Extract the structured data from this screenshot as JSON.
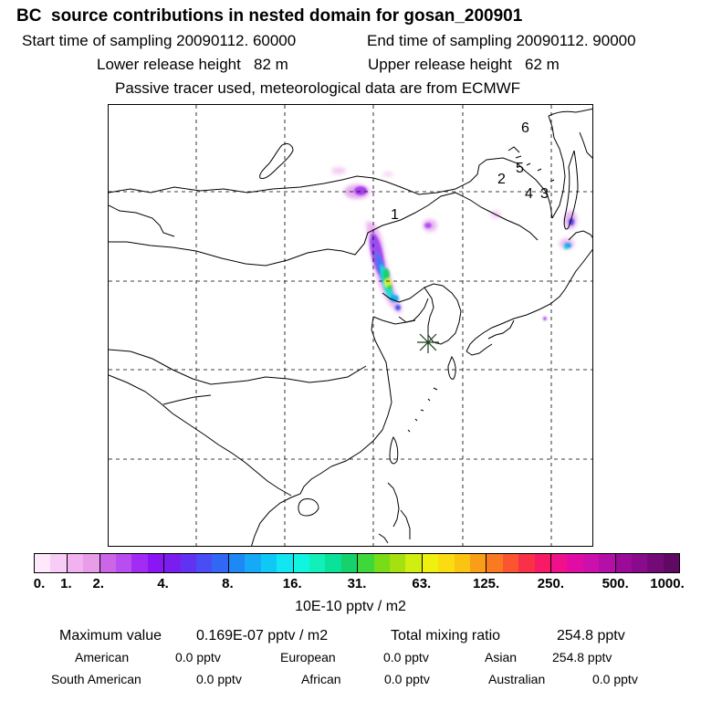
{
  "header": {
    "title": "BC  source contributions in nested domain for gosan_200901",
    "start_time": "Start time of sampling 20090112. 60000",
    "end_time": "End time of sampling 20090112. 90000",
    "lower_height": "Lower release height   82 m",
    "upper_height": "Upper release height   62 m",
    "tracer_note": "Passive tracer used, meteorological data are from ECMWF"
  },
  "map": {
    "receptor_marker": "gosan-receptor",
    "labels": [
      "1",
      "2",
      "3",
      "4",
      "5",
      "6"
    ]
  },
  "colorbar": {
    "ticks": [
      "0.",
      "1.",
      "2.",
      "4.",
      "8.",
      "16.",
      "31.",
      "63.",
      "125.",
      "250.",
      "500.",
      "1000."
    ],
    "unit": "10E-10 pptv / m2",
    "colors": [
      "#fde9fb",
      "#f7ccf5",
      "#f1b2ef",
      "#e99ce8",
      "#cc66e8",
      "#b84ef0",
      "#a32cf5",
      "#8a16f5",
      "#7a1ef0",
      "#6232f2",
      "#4a4cf5",
      "#3266f4",
      "#1e88f5",
      "#14aaf5",
      "#10c8f5",
      "#12e6f2",
      "#10f4e0",
      "#10f0b8",
      "#0ae29a",
      "#16d26c",
      "#3ed83a",
      "#78dc16",
      "#a6e010",
      "#d0ee10",
      "#f0f010",
      "#fadc10",
      "#fac410",
      "#fa9e18",
      "#fa7a20",
      "#fa5430",
      "#f83048",
      "#f81a66",
      "#f0108a",
      "#e00ca4",
      "#cc10ac",
      "#b410a8",
      "#9c0a9a",
      "#8a0a8c",
      "#740a78",
      "#5e0a62"
    ],
    "separators": [
      1,
      3,
      7,
      11,
      15,
      19,
      23,
      27,
      31,
      35
    ]
  },
  "stats": {
    "max_label": "Maximum value",
    "max_value": "0.169E-07 pptv / m2",
    "total_label": "Total mixing ratio",
    "total_value": "254.8 pptv",
    "regions": [
      {
        "name": "American",
        "value": "0.0 pptv"
      },
      {
        "name": "European",
        "value": "0.0 pptv"
      },
      {
        "name": "Asian",
        "value": "254.8 pptv"
      },
      {
        "name": "South American",
        "value": "0.0 pptv"
      },
      {
        "name": "African",
        "value": "0.0 pptv"
      },
      {
        "name": "Australian",
        "value": "0.0 pptv"
      }
    ]
  }
}
